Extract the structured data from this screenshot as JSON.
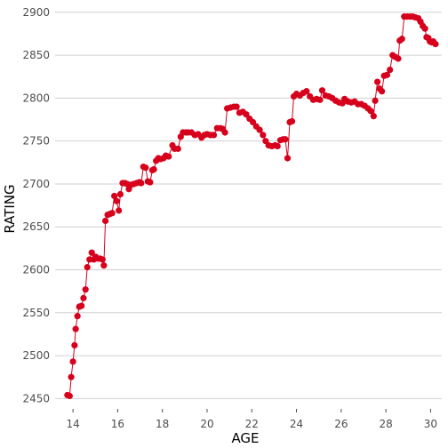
{
  "chart_data": {
    "type": "line",
    "title": "",
    "xlabel": "AGE",
    "ylabel": "RATING",
    "xlim": [
      13.2,
      30.5
    ],
    "ylim": [
      2440,
      2905
    ],
    "xticks": [
      14,
      16,
      18,
      20,
      22,
      24,
      26,
      28,
      30
    ],
    "yticks": [
      2450,
      2500,
      2550,
      2600,
      2650,
      2700,
      2750,
      2800,
      2850,
      2900
    ],
    "grid": "horizontal",
    "legend": "none",
    "colors": {
      "line": "#d7001c",
      "point": "#d7001c",
      "grid": "#d0d0d0"
    },
    "series": [
      {
        "points": [
          [
            13.75,
            2454
          ],
          [
            13.85,
            2453
          ],
          [
            13.92,
            2475
          ],
          [
            14.0,
            2493
          ],
          [
            14.07,
            2512
          ],
          [
            14.12,
            2531
          ],
          [
            14.2,
            2546
          ],
          [
            14.28,
            2557
          ],
          [
            14.38,
            2558
          ],
          [
            14.47,
            2567
          ],
          [
            14.56,
            2577
          ],
          [
            14.64,
            2603
          ],
          [
            14.74,
            2612
          ],
          [
            14.84,
            2620
          ],
          [
            14.93,
            2612
          ],
          [
            15.02,
            2615
          ],
          [
            15.12,
            2613
          ],
          [
            15.22,
            2613
          ],
          [
            15.32,
            2612
          ],
          [
            15.38,
            2605
          ],
          [
            15.45,
            2657
          ],
          [
            15.55,
            2664
          ],
          [
            15.65,
            2665
          ],
          [
            15.75,
            2666
          ],
          [
            15.85,
            2686
          ],
          [
            15.95,
            2680
          ],
          [
            16.05,
            2669
          ],
          [
            16.12,
            2688
          ],
          [
            16.22,
            2701
          ],
          [
            16.32,
            2701
          ],
          [
            16.42,
            2700
          ],
          [
            16.5,
            2694
          ],
          [
            16.6,
            2699
          ],
          [
            16.72,
            2700
          ],
          [
            16.85,
            2701
          ],
          [
            16.97,
            2702
          ],
          [
            17.05,
            2701
          ],
          [
            17.15,
            2720
          ],
          [
            17.25,
            2719
          ],
          [
            17.35,
            2703
          ],
          [
            17.45,
            2702
          ],
          [
            17.55,
            2716
          ],
          [
            17.62,
            2717
          ],
          [
            17.72,
            2727
          ],
          [
            17.82,
            2730
          ],
          [
            17.92,
            2729
          ],
          [
            18.05,
            2730
          ],
          [
            18.15,
            2733
          ],
          [
            18.28,
            2732
          ],
          [
            18.45,
            2745
          ],
          [
            18.55,
            2741
          ],
          [
            18.7,
            2741
          ],
          [
            18.82,
            2755
          ],
          [
            18.92,
            2760
          ],
          [
            19.05,
            2760
          ],
          [
            19.15,
            2760
          ],
          [
            19.3,
            2760
          ],
          [
            19.45,
            2757
          ],
          [
            19.6,
            2758
          ],
          [
            19.75,
            2754
          ],
          [
            19.88,
            2757
          ],
          [
            20.0,
            2758
          ],
          [
            20.15,
            2757
          ],
          [
            20.3,
            2757
          ],
          [
            20.45,
            2765
          ],
          [
            20.6,
            2765
          ],
          [
            20.7,
            2764
          ],
          [
            20.8,
            2760
          ],
          [
            20.9,
            2788
          ],
          [
            21.05,
            2789
          ],
          [
            21.2,
            2790
          ],
          [
            21.32,
            2790
          ],
          [
            21.45,
            2783
          ],
          [
            21.6,
            2784
          ],
          [
            21.75,
            2781
          ],
          [
            21.9,
            2776
          ],
          [
            22.05,
            2772
          ],
          [
            22.2,
            2767
          ],
          [
            22.35,
            2763
          ],
          [
            22.5,
            2757
          ],
          [
            22.62,
            2750
          ],
          [
            22.75,
            2745
          ],
          [
            22.9,
            2744
          ],
          [
            23.05,
            2745
          ],
          [
            23.15,
            2744
          ],
          [
            23.28,
            2751
          ],
          [
            23.4,
            2752
          ],
          [
            23.5,
            2752
          ],
          [
            23.6,
            2730
          ],
          [
            23.7,
            2772
          ],
          [
            23.8,
            2773
          ],
          [
            23.88,
            2802
          ],
          [
            24.0,
            2805
          ],
          [
            24.15,
            2803
          ],
          [
            24.3,
            2806
          ],
          [
            24.45,
            2808
          ],
          [
            24.6,
            2802
          ],
          [
            24.75,
            2798
          ],
          [
            24.9,
            2799
          ],
          [
            25.05,
            2798
          ],
          [
            25.15,
            2809
          ],
          [
            25.3,
            2803
          ],
          [
            25.45,
            2802
          ],
          [
            25.6,
            2800
          ],
          [
            25.75,
            2797
          ],
          [
            25.9,
            2795
          ],
          [
            26.05,
            2794
          ],
          [
            26.15,
            2799
          ],
          [
            26.3,
            2796
          ],
          [
            26.45,
            2795
          ],
          [
            26.6,
            2796
          ],
          [
            26.75,
            2793
          ],
          [
            26.9,
            2793
          ],
          [
            27.05,
            2791
          ],
          [
            27.2,
            2788
          ],
          [
            27.32,
            2785
          ],
          [
            27.45,
            2779
          ],
          [
            27.52,
            2797
          ],
          [
            27.62,
            2819
          ],
          [
            27.72,
            2811
          ],
          [
            27.82,
            2808
          ],
          [
            27.92,
            2826
          ],
          [
            28.05,
            2827
          ],
          [
            28.18,
            2833
          ],
          [
            28.3,
            2850
          ],
          [
            28.42,
            2848
          ],
          [
            28.55,
            2846
          ],
          [
            28.62,
            2867
          ],
          [
            28.72,
            2869
          ],
          [
            28.82,
            2895
          ],
          [
            28.95,
            2895
          ],
          [
            29.08,
            2895
          ],
          [
            29.2,
            2895
          ],
          [
            29.32,
            2894
          ],
          [
            29.45,
            2893
          ],
          [
            29.55,
            2889
          ],
          [
            29.65,
            2884
          ],
          [
            29.75,
            2881
          ],
          [
            29.82,
            2871
          ],
          [
            29.9,
            2870
          ],
          [
            29.97,
            2866
          ],
          [
            30.05,
            2865
          ],
          [
            30.12,
            2866
          ],
          [
            30.22,
            2863
          ]
        ]
      }
    ]
  }
}
